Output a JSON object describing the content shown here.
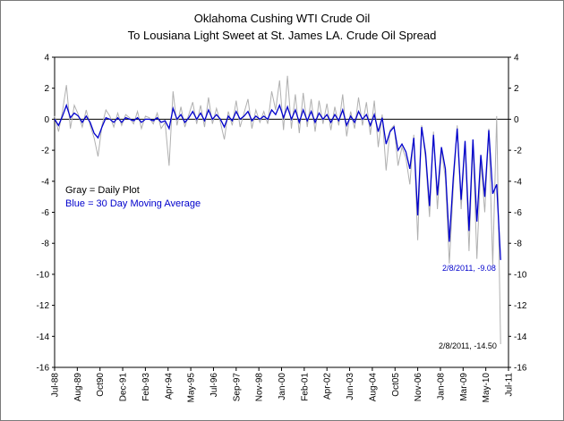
{
  "chart_data": {
    "type": "line",
    "title": "Oklahoma Cushing WTI Crude Oil",
    "subtitle": "To Lousiana Light Sweet at St. James LA. Crude Oil Spread",
    "ylim": [
      -16,
      4
    ],
    "yticks": [
      4,
      2,
      0,
      -2,
      -4,
      -6,
      -8,
      -10,
      -12,
      -14,
      -16
    ],
    "xlim": [
      "1988-07-01",
      "2011-07-01"
    ],
    "xticks": [
      "Jul-88",
      "Aug-89",
      "Oct90",
      "Dec-91",
      "Feb-93",
      "Apr-94",
      "May-95",
      "Jul-96",
      "Sep-97",
      "Nov-98",
      "Jan-00",
      "Feb-01",
      "Apr-02",
      "Jun-03",
      "Aug-04",
      "Oct05",
      "Nov-06",
      "Jan-08",
      "Mar-09",
      "May-10",
      "Jul-11"
    ],
    "zero_line": true,
    "legend": [
      {
        "text": "Gray = Daily Plot",
        "color": "#000000"
      },
      {
        "text": "Blue = 30 Day Moving Average",
        "color": "#0000cc"
      }
    ],
    "annotations": [
      {
        "text": "2/8/2011, -9.08",
        "color": "#0000cc"
      },
      {
        "text": "2/8/2011, -14.50",
        "color": "#000000"
      }
    ],
    "series": [
      {
        "name": "Daily Plot",
        "color": "#b0b0b0",
        "x": [
          1988.5,
          1988.7,
          1988.9,
          1989.1,
          1989.3,
          1989.5,
          1989.7,
          1989.9,
          1990.1,
          1990.3,
          1990.5,
          1990.7,
          1990.9,
          1991.1,
          1991.3,
          1991.5,
          1991.7,
          1991.9,
          1992.1,
          1992.3,
          1992.5,
          1992.7,
          1992.9,
          1993.1,
          1993.3,
          1993.5,
          1993.7,
          1993.9,
          1994.1,
          1994.3,
          1994.5,
          1994.7,
          1994.9,
          1995.1,
          1995.3,
          1995.5,
          1995.7,
          1995.9,
          1996.1,
          1996.3,
          1996.5,
          1996.7,
          1996.9,
          1997.1,
          1997.3,
          1997.5,
          1997.7,
          1997.9,
          1998.1,
          1998.3,
          1998.5,
          1998.7,
          1998.9,
          1999.1,
          1999.3,
          1999.5,
          1999.7,
          1999.9,
          2000.1,
          2000.3,
          2000.5,
          2000.7,
          2000.9,
          2001.1,
          2001.3,
          2001.5,
          2001.7,
          2001.9,
          2002.1,
          2002.3,
          2002.5,
          2002.7,
          2002.9,
          2003.1,
          2003.3,
          2003.5,
          2003.7,
          2003.9,
          2004.1,
          2004.3,
          2004.5,
          2004.7,
          2004.9,
          2005.1,
          2005.3,
          2005.5,
          2005.7,
          2005.9,
          2006.1,
          2006.3,
          2006.5,
          2006.7,
          2006.9,
          2007.1,
          2007.3,
          2007.5,
          2007.7,
          2007.9,
          2008.1,
          2008.3,
          2008.5,
          2008.7,
          2008.9,
          2009.1,
          2009.3,
          2009.5,
          2009.7,
          2009.9,
          2010.1,
          2010.3,
          2010.5,
          2010.7,
          2010.9,
          2011.1
        ],
        "values": [
          0.2,
          -0.8,
          0.5,
          2.2,
          -0.6,
          0.9,
          0.3,
          -0.5,
          0.6,
          -0.4,
          -1.2,
          -2.4,
          -0.4,
          0.6,
          0.2,
          -0.5,
          0.4,
          -0.4,
          0.3,
          0.1,
          -0.3,
          0.5,
          -0.6,
          0.2,
          0.1,
          -0.3,
          0.4,
          -0.6,
          -0.2,
          -3.0,
          1.8,
          -0.4,
          0.8,
          -0.5,
          0.3,
          1.1,
          -0.3,
          0.9,
          -0.5,
          1.4,
          -0.3,
          0.7,
          -0.2,
          -1.3,
          0.5,
          -0.4,
          1.2,
          -0.5,
          0.4,
          1.3,
          -0.6,
          0.6,
          -0.2,
          0.5,
          -0.3,
          1.8,
          0.6,
          2.5,
          -0.7,
          2.8,
          -0.6,
          1.6,
          -0.9,
          1.7,
          -0.5,
          1.3,
          -0.8,
          1.2,
          -0.3,
          1.0,
          -0.7,
          0.8,
          -0.4,
          1.6,
          -1.1,
          0.5,
          -0.6,
          1.4,
          -0.4,
          1.1,
          -1.0,
          1.2,
          -1.8,
          0.3,
          -3.3,
          -0.7,
          -0.4,
          -3.0,
          -1.8,
          -2.5,
          -4.2,
          -1.0,
          -7.8,
          -0.4,
          -2.6,
          -6.3,
          -0.8,
          -5.8,
          -2.0,
          -3.8,
          -9.3,
          -4.5,
          -0.4,
          -5.8,
          -1.6,
          -8.5,
          -1.6,
          -9.0,
          -2.8,
          -6.0,
          -0.6,
          -9.4,
          0.2,
          -14.5
        ]
      },
      {
        "name": "30 Day Moving Average",
        "color": "#0000cc",
        "x": [
          1988.5,
          1988.7,
          1988.9,
          1989.1,
          1989.3,
          1989.5,
          1989.7,
          1989.9,
          1990.1,
          1990.3,
          1990.5,
          1990.7,
          1990.9,
          1991.1,
          1991.3,
          1991.5,
          1991.7,
          1991.9,
          1992.1,
          1992.3,
          1992.5,
          1992.7,
          1992.9,
          1993.1,
          1993.3,
          1993.5,
          1993.7,
          1993.9,
          1994.1,
          1994.3,
          1994.5,
          1994.7,
          1994.9,
          1995.1,
          1995.3,
          1995.5,
          1995.7,
          1995.9,
          1996.1,
          1996.3,
          1996.5,
          1996.7,
          1996.9,
          1997.1,
          1997.3,
          1997.5,
          1997.7,
          1997.9,
          1998.1,
          1998.3,
          1998.5,
          1998.7,
          1998.9,
          1999.1,
          1999.3,
          1999.5,
          1999.7,
          1999.9,
          2000.1,
          2000.3,
          2000.5,
          2000.7,
          2000.9,
          2001.1,
          2001.3,
          2001.5,
          2001.7,
          2001.9,
          2002.1,
          2002.3,
          2002.5,
          2002.7,
          2002.9,
          2003.1,
          2003.3,
          2003.5,
          2003.7,
          2003.9,
          2004.1,
          2004.3,
          2004.5,
          2004.7,
          2004.9,
          2005.1,
          2005.3,
          2005.5,
          2005.7,
          2005.9,
          2006.1,
          2006.3,
          2006.5,
          2006.7,
          2006.9,
          2007.1,
          2007.3,
          2007.5,
          2007.7,
          2007.9,
          2008.1,
          2008.3,
          2008.5,
          2008.7,
          2008.9,
          2009.1,
          2009.3,
          2009.5,
          2009.7,
          2009.9,
          2010.1,
          2010.3,
          2010.5,
          2010.7,
          2010.9,
          2011.1
        ],
        "values": [
          0.0,
          -0.4,
          0.2,
          0.9,
          0.1,
          0.4,
          0.2,
          -0.2,
          0.2,
          -0.2,
          -0.9,
          -1.2,
          -0.5,
          0.1,
          0.0,
          -0.2,
          0.1,
          -0.2,
          0.1,
          0.0,
          -0.1,
          0.1,
          -0.2,
          0.0,
          0.0,
          -0.1,
          0.1,
          -0.2,
          -0.1,
          -0.6,
          0.7,
          0.0,
          0.3,
          -0.2,
          0.1,
          0.5,
          0.0,
          0.4,
          -0.1,
          0.6,
          0.0,
          0.3,
          0.0,
          -0.5,
          0.2,
          -0.1,
          0.5,
          0.0,
          0.2,
          0.5,
          -0.1,
          0.2,
          0.0,
          0.2,
          0.0,
          0.6,
          0.3,
          0.9,
          0.1,
          0.8,
          0.0,
          0.6,
          -0.2,
          0.6,
          -0.1,
          0.5,
          -0.2,
          0.4,
          0.0,
          0.3,
          -0.2,
          0.3,
          -0.1,
          0.6,
          -0.4,
          0.2,
          -0.2,
          0.5,
          0.0,
          0.3,
          -0.4,
          0.3,
          -0.8,
          0.1,
          -1.6,
          -0.8,
          -0.5,
          -2.0,
          -1.6,
          -2.1,
          -3.2,
          -1.2,
          -6.2,
          -0.5,
          -2.2,
          -5.6,
          -1.0,
          -4.9,
          -1.8,
          -3.2,
          -7.9,
          -3.8,
          -0.6,
          -5.2,
          -1.4,
          -7.2,
          -1.3,
          -6.6,
          -2.3,
          -5.0,
          -0.7,
          -4.8,
          -4.2,
          -9.08
        ]
      }
    ]
  }
}
